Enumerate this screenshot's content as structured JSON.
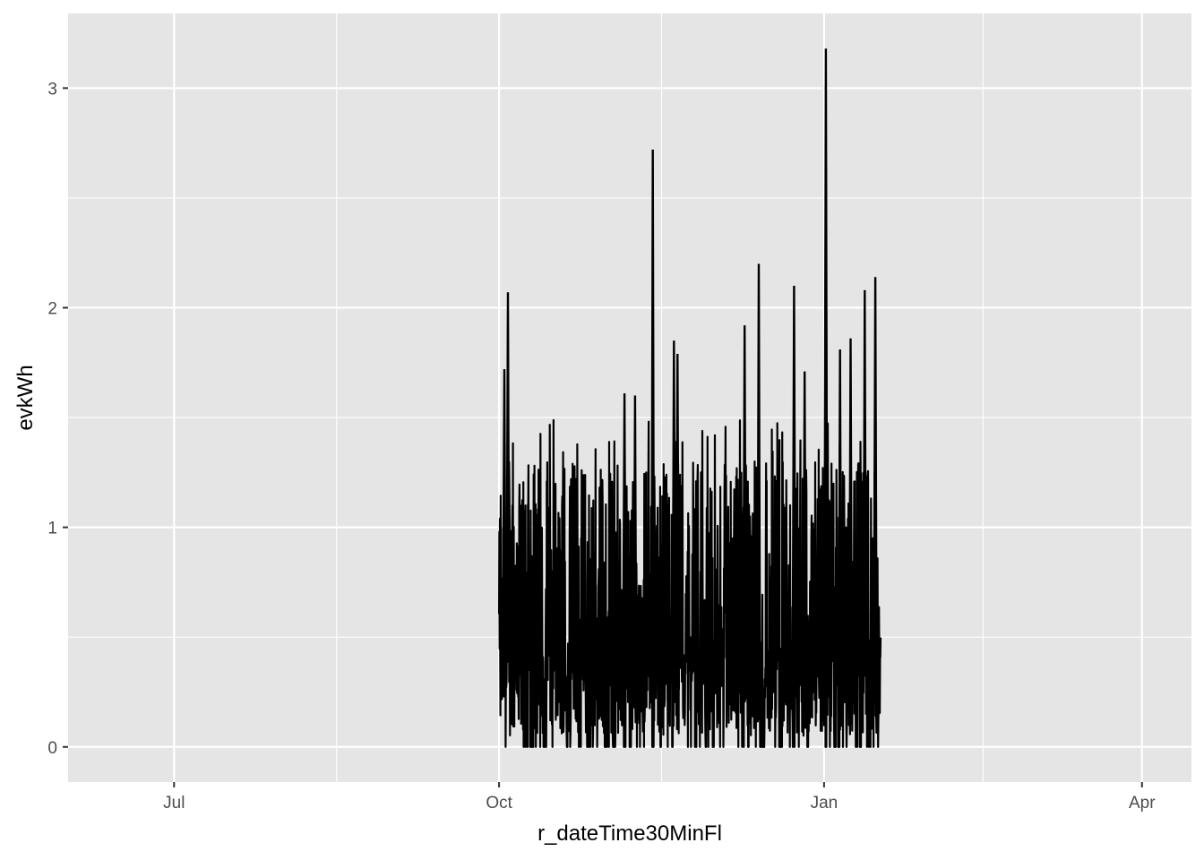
{
  "chart_data": {
    "type": "line",
    "title": "",
    "xlabel": "r_dateTime30MinFl",
    "ylabel": "evkWh",
    "x_type": "date",
    "xlim": [
      "2017-06-01",
      "2018-04-15"
    ],
    "ylim": [
      -0.16,
      3.34
    ],
    "x_ticks": [
      {
        "value": "2017-07-01",
        "label": "Jul"
      },
      {
        "value": "2017-10-01",
        "label": "Oct"
      },
      {
        "value": "2018-01-01",
        "label": "Jan"
      },
      {
        "value": "2018-04-01",
        "label": "Apr"
      }
    ],
    "y_ticks": [
      {
        "value": 0,
        "label": "0"
      },
      {
        "value": 1,
        "label": "1"
      },
      {
        "value": 2,
        "label": "2"
      },
      {
        "value": 3,
        "label": "3"
      }
    ],
    "grid": true,
    "legend": "none",
    "colors": {
      "panel": "#e5e5e5",
      "grid": "#ffffff",
      "line": "#000000",
      "tick_text": "#4d4d4d",
      "tick_mark": "#333333"
    },
    "series": [
      {
        "color": "#000000",
        "x_start": "2017-10-01",
        "x_end": "2018-01-17",
        "peaks": [
          {
            "x": "2017-10-02",
            "y": 1.72
          },
          {
            "x": "2017-10-03",
            "y": 2.07
          },
          {
            "x": "2017-11-05",
            "y": 1.61
          },
          {
            "x": "2017-11-08",
            "y": 1.6
          },
          {
            "x": "2017-11-13",
            "y": 2.72
          },
          {
            "x": "2017-11-19",
            "y": 1.85
          },
          {
            "x": "2017-11-20",
            "y": 1.79
          },
          {
            "x": "2017-12-09",
            "y": 1.92
          },
          {
            "x": "2017-12-13",
            "y": 2.2
          },
          {
            "x": "2017-12-23",
            "y": 2.1
          },
          {
            "x": "2017-12-26",
            "y": 1.71
          },
          {
            "x": "2018-01-01",
            "y": 3.18
          },
          {
            "x": "2018-01-01",
            "y": 2.65
          },
          {
            "x": "2018-01-05",
            "y": 1.81
          },
          {
            "x": "2018-01-08",
            "y": 1.86
          },
          {
            "x": "2018-01-12",
            "y": 2.08
          },
          {
            "x": "2018-01-15",
            "y": 2.14
          }
        ],
        "typical_range": [
          0.0,
          1.3
        ]
      }
    ]
  }
}
